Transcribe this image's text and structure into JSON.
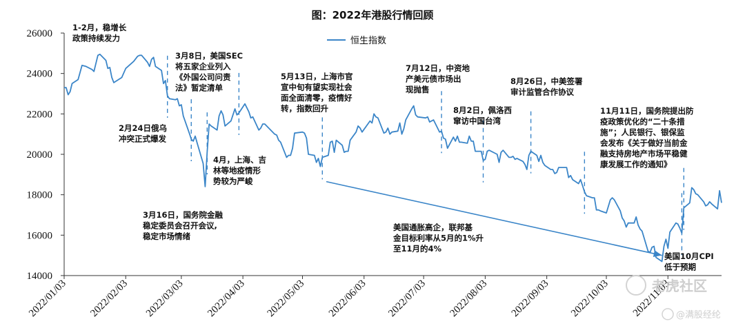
{
  "chart_data": {
    "type": "line",
    "title": "图：2022年港股行情回顾",
    "ylim": [
      14000,
      26000
    ],
    "yticks": [
      14000,
      16000,
      18000,
      20000,
      22000,
      24000,
      26000
    ],
    "xticks": [
      "2022/01/03",
      "2022/02/03",
      "2022/03/03",
      "2022/04/03",
      "2022/05/03",
      "2022/06/03",
      "2022/07/03",
      "2022/08/03",
      "2022/09/03",
      "2022/10/03",
      "2022/11/03"
    ],
    "xlim": [
      "2022-01-03",
      "2022-11-30"
    ],
    "grid": false,
    "legend_position": "top-center",
    "series": [
      {
        "name": "恒生指数",
        "color": "#3a85c8",
        "points": [
          [
            "2022-01-03",
            23300
          ],
          [
            "2022-01-04",
            23300
          ],
          [
            "2022-01-05",
            22950
          ],
          [
            "2022-01-06",
            23100
          ],
          [
            "2022-01-07",
            23500
          ],
          [
            "2022-01-10",
            23700
          ],
          [
            "2022-01-12",
            24400
          ],
          [
            "2022-01-14",
            24350
          ],
          [
            "2022-01-17",
            24200
          ],
          [
            "2022-01-18",
            24100
          ],
          [
            "2022-01-20",
            24900
          ],
          [
            "2022-01-21",
            24950
          ],
          [
            "2022-01-24",
            24650
          ],
          [
            "2022-01-25",
            24250
          ],
          [
            "2022-01-26",
            24300
          ],
          [
            "2022-01-27",
            23800
          ],
          [
            "2022-01-28",
            23550
          ],
          [
            "2022-02-01",
            23800
          ],
          [
            "2022-02-03",
            24250
          ],
          [
            "2022-02-07",
            24600
          ],
          [
            "2022-02-09",
            24850
          ],
          [
            "2022-02-10",
            24900
          ],
          [
            "2022-02-11",
            24900
          ],
          [
            "2022-02-14",
            24550
          ],
          [
            "2022-02-15",
            24350
          ],
          [
            "2022-02-16",
            24700
          ],
          [
            "2022-02-17",
            24800
          ],
          [
            "2022-02-18",
            24350
          ],
          [
            "2022-02-21",
            24150
          ],
          [
            "2022-02-22",
            23500
          ],
          [
            "2022-02-23",
            23650
          ],
          [
            "2022-02-24",
            22900
          ],
          [
            "2022-02-25",
            22750
          ],
          [
            "2022-02-28",
            22700
          ],
          [
            "2022-03-01",
            22750
          ],
          [
            "2022-03-02",
            22400
          ],
          [
            "2022-03-03",
            22450
          ],
          [
            "2022-03-04",
            21900
          ],
          [
            "2022-03-07",
            21050
          ],
          [
            "2022-03-08",
            20750
          ],
          [
            "2022-03-09",
            20650
          ],
          [
            "2022-03-10",
            20900
          ],
          [
            "2022-03-11",
            20550
          ],
          [
            "2022-03-14",
            19550
          ],
          [
            "2022-03-15",
            18400
          ],
          [
            "2022-03-16",
            20100
          ],
          [
            "2022-03-17",
            21500
          ],
          [
            "2022-03-18",
            21400
          ],
          [
            "2022-03-21",
            21200
          ],
          [
            "2022-03-22",
            21900
          ],
          [
            "2022-03-23",
            22150
          ],
          [
            "2022-03-24",
            21950
          ],
          [
            "2022-03-25",
            21400
          ],
          [
            "2022-03-28",
            21650
          ],
          [
            "2022-03-29",
            21950
          ],
          [
            "2022-03-30",
            22250
          ],
          [
            "2022-03-31",
            21950
          ],
          [
            "2022-04-01",
            22050
          ],
          [
            "2022-04-04",
            22500
          ],
          [
            "2022-04-06",
            22100
          ],
          [
            "2022-04-07",
            21800
          ],
          [
            "2022-04-08",
            21850
          ],
          [
            "2022-04-11",
            21200
          ],
          [
            "2022-04-12",
            21300
          ],
          [
            "2022-04-13",
            21500
          ],
          [
            "2022-04-14",
            21500
          ],
          [
            "2022-04-19",
            21000
          ],
          [
            "2022-04-20",
            20950
          ],
          [
            "2022-04-21",
            20700
          ],
          [
            "2022-04-22",
            20600
          ],
          [
            "2022-04-25",
            19850
          ],
          [
            "2022-04-26",
            19950
          ],
          [
            "2022-04-27",
            19950
          ],
          [
            "2022-04-28",
            20300
          ],
          [
            "2022-04-29",
            21050
          ],
          [
            "2022-05-03",
            21100
          ],
          [
            "2022-05-04",
            21050
          ],
          [
            "2022-05-05",
            20800
          ],
          [
            "2022-05-06",
            20000
          ],
          [
            "2022-05-09",
            19950
          ],
          [
            "2022-05-10",
            19600
          ],
          [
            "2022-05-11",
            19800
          ],
          [
            "2022-05-12",
            19400
          ],
          [
            "2022-05-13",
            19850
          ],
          [
            "2022-05-16",
            19950
          ],
          [
            "2022-05-17",
            20600
          ],
          [
            "2022-05-18",
            20650
          ],
          [
            "2022-05-19",
            20100
          ],
          [
            "2022-05-20",
            20700
          ],
          [
            "2022-05-23",
            20450
          ],
          [
            "2022-05-24",
            20100
          ],
          [
            "2022-05-25",
            20150
          ],
          [
            "2022-05-26",
            20150
          ],
          [
            "2022-05-27",
            20700
          ],
          [
            "2022-05-30",
            21100
          ],
          [
            "2022-05-31",
            21400
          ],
          [
            "2022-06-01",
            21300
          ],
          [
            "2022-06-02",
            21100
          ],
          [
            "2022-06-06",
            21650
          ],
          [
            "2022-06-07",
            21550
          ],
          [
            "2022-06-08",
            22000
          ],
          [
            "2022-06-09",
            21850
          ],
          [
            "2022-06-10",
            21800
          ],
          [
            "2022-06-13",
            21050
          ],
          [
            "2022-06-14",
            21100
          ],
          [
            "2022-06-15",
            21300
          ],
          [
            "2022-06-16",
            21000
          ],
          [
            "2022-06-17",
            21100
          ],
          [
            "2022-06-20",
            21150
          ],
          [
            "2022-06-21",
            21550
          ],
          [
            "2022-06-22",
            21000
          ],
          [
            "2022-06-23",
            21250
          ],
          [
            "2022-06-24",
            21700
          ],
          [
            "2022-06-27",
            22250
          ],
          [
            "2022-06-28",
            22400
          ],
          [
            "2022-06-29",
            21950
          ],
          [
            "2022-06-30",
            21850
          ],
          [
            "2022-07-04",
            21800
          ],
          [
            "2022-07-05",
            21850
          ],
          [
            "2022-07-06",
            21600
          ],
          [
            "2022-07-07",
            21650
          ],
          [
            "2022-07-08",
            21700
          ],
          [
            "2022-07-11",
            21100
          ],
          [
            "2022-07-12",
            21150
          ],
          [
            "2022-07-13",
            20800
          ],
          [
            "2022-07-14",
            20750
          ],
          [
            "2022-07-15",
            20300
          ],
          [
            "2022-07-18",
            20850
          ],
          [
            "2022-07-19",
            20650
          ],
          [
            "2022-07-20",
            20900
          ],
          [
            "2022-07-21",
            20600
          ],
          [
            "2022-07-22",
            20600
          ],
          [
            "2022-07-25",
            20550
          ],
          [
            "2022-07-26",
            20900
          ],
          [
            "2022-07-27",
            20650
          ],
          [
            "2022-07-28",
            20650
          ],
          [
            "2022-07-29",
            20150
          ],
          [
            "2022-08-01",
            20150
          ],
          [
            "2022-08-02",
            19700
          ],
          [
            "2022-08-03",
            19750
          ],
          [
            "2022-08-04",
            20150
          ],
          [
            "2022-08-05",
            20200
          ],
          [
            "2022-08-08",
            20050
          ],
          [
            "2022-08-09",
            20000
          ],
          [
            "2022-08-10",
            19600
          ],
          [
            "2022-08-11",
            20100
          ],
          [
            "2022-08-12",
            20200
          ],
          [
            "2022-08-15",
            19850
          ],
          [
            "2022-08-16",
            19850
          ],
          [
            "2022-08-17",
            19900
          ],
          [
            "2022-08-18",
            19750
          ],
          [
            "2022-08-19",
            19800
          ],
          [
            "2022-08-22",
            19650
          ],
          [
            "2022-08-23",
            19500
          ],
          [
            "2022-08-24",
            19250
          ],
          [
            "2022-08-25",
            19950
          ],
          [
            "2022-08-26",
            20150
          ],
          [
            "2022-08-29",
            19950
          ],
          [
            "2022-08-30",
            19650
          ],
          [
            "2022-08-31",
            19950
          ],
          [
            "2022-09-01",
            19600
          ],
          [
            "2022-09-02",
            19450
          ],
          [
            "2022-09-05",
            19250
          ],
          [
            "2022-09-06",
            19250
          ],
          [
            "2022-09-07",
            19050
          ],
          [
            "2022-09-08",
            19100
          ],
          [
            "2022-09-09",
            19350
          ],
          [
            "2022-09-13",
            19350
          ],
          [
            "2022-09-14",
            18850
          ],
          [
            "2022-09-15",
            18950
          ],
          [
            "2022-09-16",
            18750
          ],
          [
            "2022-09-19",
            18550
          ],
          [
            "2022-09-20",
            18750
          ],
          [
            "2022-09-21",
            18450
          ],
          [
            "2022-09-22",
            18150
          ],
          [
            "2022-09-23",
            17950
          ],
          [
            "2022-09-26",
            17850
          ],
          [
            "2022-09-27",
            17850
          ],
          [
            "2022-09-28",
            17250
          ],
          [
            "2022-09-29",
            17250
          ],
          [
            "2022-09-30",
            17200
          ],
          [
            "2022-10-03",
            17100
          ],
          [
            "2022-10-05",
            17750
          ],
          [
            "2022-10-06",
            17850
          ],
          [
            "2022-10-07",
            17750
          ],
          [
            "2022-10-10",
            17200
          ],
          [
            "2022-10-11",
            16850
          ],
          [
            "2022-10-12",
            16700
          ],
          [
            "2022-10-13",
            16400
          ],
          [
            "2022-10-14",
            16600
          ],
          [
            "2022-10-17",
            16600
          ],
          [
            "2022-10-18",
            16900
          ],
          [
            "2022-10-19",
            16500
          ],
          [
            "2022-10-20",
            16300
          ],
          [
            "2022-10-21",
            16200
          ],
          [
            "2022-10-24",
            15200
          ],
          [
            "2022-10-25",
            15150
          ],
          [
            "2022-10-26",
            15400
          ],
          [
            "2022-10-27",
            15450
          ],
          [
            "2022-10-28",
            14900
          ],
          [
            "2022-10-31",
            14700
          ],
          [
            "2022-11-01",
            15450
          ],
          [
            "2022-11-02",
            15800
          ],
          [
            "2022-11-03",
            15350
          ],
          [
            "2022-11-04",
            16150
          ],
          [
            "2022-11-07",
            16600
          ],
          [
            "2022-11-08",
            16550
          ],
          [
            "2022-11-09",
            16350
          ],
          [
            "2022-11-10",
            16100
          ],
          [
            "2022-11-11",
            17350
          ],
          [
            "2022-11-14",
            17600
          ],
          [
            "2022-11-15",
            18350
          ],
          [
            "2022-11-16",
            18250
          ],
          [
            "2022-11-17",
            18050
          ],
          [
            "2022-11-18",
            18000
          ],
          [
            "2022-11-21",
            17650
          ],
          [
            "2022-11-22",
            17450
          ],
          [
            "2022-11-23",
            17500
          ],
          [
            "2022-11-24",
            17650
          ],
          [
            "2022-11-25",
            17550
          ],
          [
            "2022-11-28",
            17300
          ],
          [
            "2022-11-29",
            18200
          ],
          [
            "2022-11-30",
            17600
          ]
        ]
      }
    ],
    "event_markers": [
      "2022-02-24",
      "2022-03-08",
      "2022-03-16",
      "2022-04-01",
      "2022-05-13",
      "2022-07-12",
      "2022-08-02",
      "2022-08-26",
      "2022-09-22",
      "2022-11-10",
      "2022-11-11"
    ],
    "trend_arrow": {
      "from": [
        "2022-05-15",
        18650
      ],
      "to": [
        "2022-10-31",
        15000
      ]
    },
    "annotations": [
      {
        "id": "a1",
        "lines": [
          "1-2月，稳增长",
          "政策持续发力"
        ]
      },
      {
        "id": "a2",
        "lines": [
          "2月24日俄乌",
          "冲突正式爆发"
        ]
      },
      {
        "id": "a3",
        "lines": [
          "3月8日，美国SEC",
          "将五家企业列入",
          "《外国公司问责",
          "法》暂定清单"
        ]
      },
      {
        "id": "a4",
        "lines": [
          "3月16日，国务院金融",
          "稳定委员会召开会议,",
          "稳定市场情绪"
        ]
      },
      {
        "id": "a5",
        "lines": [
          "4月，上海、吉",
          "林等地疫情形",
          "势较为严峻"
        ]
      },
      {
        "id": "a6",
        "lines": [
          "5月13日，上海市官",
          "宣中旬有望实现社会",
          "面全面清零，疫情好",
          "转，指数回升"
        ]
      },
      {
        "id": "a7",
        "lines": [
          "7月12日，中资地",
          "产美元债市场出",
          "现抛售"
        ]
      },
      {
        "id": "a8",
        "lines": [
          "8月2日，佩洛西",
          "窜访中国台湾"
        ]
      },
      {
        "id": "a9",
        "lines": [
          "8月26日，中美签署",
          "审计监管合作协议"
        ]
      },
      {
        "id": "a10",
        "lines": [
          "11月11日，国务院提出防",
          "疫政策优化的“二十条措",
          "施”；人民银行、银保监",
          "会发布《关于做好当前金",
          "融支持房地产市场平稳健",
          "康发展工作的通知》"
        ]
      },
      {
        "id": "a11",
        "lines": [
          "美国通胀高企，联邦基",
          "金目标利率从5月的1%升",
          "至11月的4%"
        ]
      },
      {
        "id": "a12",
        "lines": [
          "美国10月CPI",
          "低于预期"
        ]
      }
    ]
  },
  "watermarks": {
    "main": "老虎社区",
    "sub": "@满股经纶"
  }
}
